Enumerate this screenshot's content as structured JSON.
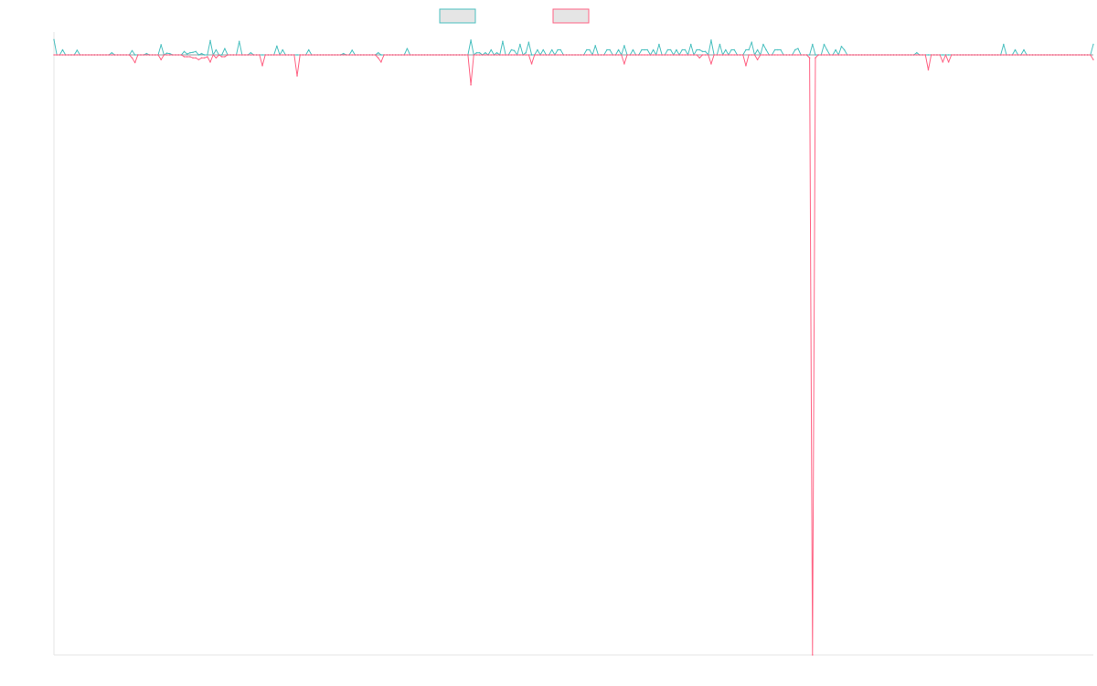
{
  "chart_data": {
    "type": "line",
    "title": "",
    "xlabel": "",
    "ylabel": "",
    "grid": false,
    "legend_placement": "top-center",
    "ylim": [
      -100,
      5
    ],
    "y_baseline": 0,
    "x": [
      0,
      1,
      2,
      3,
      4,
      5,
      6,
      7,
      8,
      9,
      10,
      11,
      12,
      13,
      14,
      15,
      16,
      17,
      18,
      19,
      20,
      21,
      22,
      23,
      24,
      25,
      26,
      27,
      28,
      29,
      30,
      31,
      32,
      33,
      34,
      35,
      36,
      37,
      38,
      39,
      40,
      41,
      42,
      43,
      44,
      45,
      46,
      47,
      48,
      49,
      50,
      51,
      52,
      53,
      54,
      55,
      56,
      57,
      58,
      59,
      60,
      61,
      62,
      63,
      64,
      65,
      66,
      67,
      68,
      69,
      70,
      71,
      72,
      73,
      74,
      75,
      76,
      77,
      78,
      79,
      80,
      81,
      82,
      83,
      84,
      85,
      86,
      87,
      88,
      89,
      90,
      91,
      92,
      93,
      94,
      95,
      96,
      97,
      98,
      99,
      100,
      101,
      102,
      103,
      104,
      105,
      106,
      107,
      108,
      109,
      110,
      111,
      112,
      113,
      114,
      115,
      116,
      117,
      118,
      119,
      120,
      121,
      122,
      123,
      124,
      125,
      126,
      127,
      128,
      129,
      130,
      131,
      132,
      133,
      134,
      135,
      136,
      137,
      138,
      139,
      140,
      141,
      142,
      143,
      144,
      145,
      146,
      147,
      148,
      149,
      150,
      151,
      152,
      153,
      154,
      155,
      156,
      157,
      158,
      159,
      160,
      161,
      162,
      163,
      164,
      165,
      166,
      167,
      168,
      169,
      170,
      171,
      172,
      173,
      174,
      175,
      176,
      177,
      178,
      179,
      180,
      181,
      182,
      183,
      184,
      185,
      186,
      187,
      188,
      189,
      190,
      191,
      192,
      193,
      194,
      195,
      196,
      197,
      198,
      199,
      200,
      201,
      202,
      203,
      204,
      205,
      206,
      207,
      208,
      209,
      210,
      211,
      212,
      213,
      214,
      215,
      216,
      217,
      218,
      219,
      220,
      221,
      222,
      223,
      224,
      225,
      226,
      227,
      228,
      229,
      230,
      231,
      232,
      233,
      234,
      235,
      236,
      237,
      238,
      239,
      240,
      241,
      242,
      243,
      244,
      245,
      246,
      247,
      248,
      249,
      250,
      251,
      252,
      253,
      254,
      255,
      256,
      257,
      258,
      259,
      260,
      261,
      262,
      263,
      264,
      265,
      266,
      267,
      268,
      269,
      270,
      271,
      272,
      273,
      274,
      275,
      276,
      277,
      278,
      279,
      280,
      281,
      282,
      283,
      284,
      285,
      286,
      287,
      288,
      289,
      290,
      291,
      292,
      293,
      294,
      295,
      296,
      297,
      298,
      299,
      300,
      301,
      302,
      303,
      304,
      305,
      306,
      307,
      308,
      309,
      310,
      311,
      312,
      313,
      314,
      315,
      316,
      317,
      318,
      319,
      320,
      321,
      322,
      323,
      324,
      325,
      326,
      327,
      328,
      329,
      330,
      331,
      332,
      333,
      334,
      335,
      336,
      337,
      338,
      339,
      340,
      341,
      342,
      343,
      344,
      345,
      346,
      347,
      348,
      349,
      350,
      351,
      352,
      353,
      354,
      355,
      356,
      357,
      358,
      359
    ],
    "series": [
      {
        "name": "",
        "color": "#4bc0c0",
        "values": [
          3.6,
          0,
          0,
          1.2,
          0,
          0,
          0,
          0,
          1.1,
          0,
          0,
          0,
          0,
          0,
          0,
          0,
          0,
          0,
          0,
          0,
          0.5,
          0,
          0,
          0,
          0,
          0,
          0,
          1.0,
          0,
          0,
          0,
          0,
          0.3,
          0,
          0,
          0,
          0,
          2.4,
          0,
          0.4,
          0.3,
          0,
          0,
          0,
          0,
          0.8,
          0.2,
          0.5,
          0.6,
          0.8,
          0,
          0.3,
          0,
          0,
          3.4,
          0,
          1.2,
          0,
          0,
          1.5,
          0,
          0,
          0,
          0,
          3.2,
          0,
          0,
          0,
          0.5,
          0,
          0,
          0,
          0,
          0,
          0,
          0,
          0,
          2.1,
          0,
          1.2,
          0,
          0,
          0,
          0,
          0,
          0,
          0,
          0,
          1.2,
          0,
          0,
          0,
          0,
          0,
          0,
          0,
          0,
          0,
          0,
          0,
          0.3,
          0,
          0,
          1.1,
          0,
          0,
          0,
          0,
          0,
          0,
          0,
          0,
          0.5,
          0,
          0,
          0,
          0,
          0,
          0,
          0,
          0,
          0,
          1.5,
          0,
          0,
          0,
          0,
          0,
          0,
          0,
          0,
          0,
          0,
          0,
          0,
          0,
          0,
          0,
          0,
          0,
          0,
          0,
          0,
          0,
          3.5,
          0,
          0.5,
          0.5,
          0,
          0.5,
          0,
          1.2,
          0,
          0.5,
          0,
          3.2,
          0,
          0,
          1.2,
          1.0,
          0,
          2.5,
          0,
          0.5,
          3.0,
          0,
          0,
          1.2,
          0,
          1.2,
          0,
          0,
          1.2,
          0,
          1.2,
          1.2,
          0,
          0,
          0,
          0,
          0,
          0,
          0,
          0,
          1.2,
          1.2,
          0,
          2.2,
          0,
          0,
          0,
          1.2,
          1.2,
          0,
          0,
          1.2,
          0,
          2.2,
          0,
          0,
          1.2,
          0,
          0,
          1.2,
          1.2,
          1.2,
          0,
          1.2,
          0,
          2.5,
          0,
          0,
          1.2,
          1.2,
          0,
          1.2,
          0,
          1.2,
          1.2,
          0,
          2.5,
          0,
          1.2,
          1.2,
          0.8,
          0.8,
          0,
          3.5,
          0,
          0,
          2.5,
          0,
          1.2,
          0,
          1.2,
          1.2,
          0,
          0,
          0,
          1.2,
          1.2,
          3.0,
          0,
          1.2,
          0,
          2.5,
          1.2,
          0,
          0,
          1.2,
          1.2,
          1.2,
          0,
          0,
          0,
          0,
          1.2,
          1.5,
          0,
          0,
          0,
          0,
          2.5,
          0,
          0,
          0,
          2.5,
          1.2,
          0,
          0,
          1.2,
          0,
          2.0,
          1.2,
          0,
          0,
          0,
          0,
          0,
          0,
          0,
          0,
          0,
          0,
          0,
          0,
          0,
          0,
          0,
          0,
          0,
          0,
          0,
          0,
          0,
          0,
          0,
          0,
          0.5,
          0,
          0,
          0,
          0,
          0,
          0,
          0,
          0,
          0,
          0,
          0,
          0,
          0,
          0,
          0,
          0,
          0,
          0,
          0,
          0,
          0,
          0,
          0,
          0,
          0,
          0,
          0,
          0,
          0,
          2.5,
          0,
          0,
          0,
          1.2,
          0,
          0,
          1.2,
          0,
          0,
          0,
          0,
          0,
          0,
          0,
          0,
          0,
          0,
          0,
          0,
          0,
          0,
          0,
          0,
          0,
          0,
          0,
          0,
          0,
          0,
          0,
          2.5
        ]
      },
      {
        "name": "",
        "color": "#ff6384",
        "values": [
          0,
          0,
          0,
          0,
          0,
          0,
          0,
          0,
          0,
          0,
          0,
          0,
          0,
          0,
          0,
          0,
          0,
          0,
          0,
          0,
          0,
          0,
          0,
          0,
          0,
          0,
          0,
          -0.5,
          -1.3,
          0,
          0,
          0,
          0,
          0,
          0,
          0,
          0,
          -0.8,
          0,
          0,
          0,
          0,
          0,
          0,
          0,
          -0.3,
          -0.3,
          -0.3,
          -0.5,
          -0.5,
          -0.8,
          -0.5,
          -0.5,
          -0.3,
          -1.2,
          0,
          -0.5,
          0,
          -0.3,
          -0.3,
          0,
          0,
          0,
          0,
          0,
          0,
          0,
          0,
          0,
          0,
          0,
          0,
          -1.8,
          0,
          0,
          0,
          0,
          0,
          0,
          0,
          0,
          0,
          0,
          0,
          -3.5,
          0,
          0,
          0,
          0,
          0,
          0,
          0,
          0,
          0,
          0,
          0,
          0,
          0,
          0,
          0,
          0,
          0,
          0,
          0,
          0,
          0,
          0,
          0,
          0,
          0,
          0,
          0,
          -0.5,
          -1.2,
          0,
          0,
          0,
          0,
          0,
          0,
          0,
          0,
          0,
          0,
          0,
          0,
          0,
          0,
          0,
          0,
          0,
          0,
          0,
          0,
          0,
          0,
          0,
          0,
          0,
          0,
          0,
          0,
          0,
          0,
          -5.0,
          0,
          0,
          0,
          0,
          0,
          0,
          0,
          0,
          0,
          0,
          0,
          0,
          0,
          0,
          0,
          0,
          0,
          0,
          0,
          0,
          -1.5,
          0,
          0,
          0,
          0,
          0,
          0,
          0,
          0,
          0,
          0,
          0,
          0,
          0,
          0,
          0,
          0,
          0,
          0,
          0,
          0,
          0,
          0,
          0,
          0,
          0,
          0,
          0,
          0,
          0,
          0,
          0,
          -1.5,
          0,
          0,
          0,
          0,
          0,
          0,
          0,
          0,
          0,
          0,
          0,
          0,
          0,
          0,
          0,
          0,
          0,
          0,
          0,
          0,
          0,
          0,
          0,
          0,
          0,
          -0.5,
          0,
          0,
          0,
          -1.5,
          0,
          0,
          0,
          0,
          0,
          0,
          0,
          0,
          0,
          0,
          0,
          -1.8,
          0,
          0,
          0,
          -0.8,
          0,
          0,
          0,
          0,
          0,
          0,
          0,
          0,
          0,
          0,
          0,
          0,
          0,
          0,
          0,
          0,
          0,
          -0.5,
          -100,
          -0.5,
          0,
          0,
          0,
          0,
          0,
          0,
          0,
          0,
          0,
          0,
          0,
          0,
          0,
          0,
          0,
          0,
          0,
          0,
          0,
          0,
          0,
          0,
          0,
          0,
          0,
          0,
          0,
          0,
          0,
          0,
          0,
          0,
          0,
          0,
          0,
          0,
          0,
          0,
          -2.5,
          0,
          0,
          0,
          0,
          -1.2,
          0,
          -1.2,
          0,
          0,
          0,
          0,
          0,
          0,
          0,
          0,
          0,
          0,
          0,
          0,
          0,
          0,
          0,
          0,
          0,
          0,
          0,
          0,
          0,
          0,
          0,
          0,
          0,
          0,
          0,
          0,
          0,
          0,
          0,
          0,
          0,
          0,
          0,
          0,
          0,
          0,
          0,
          0,
          0,
          0,
          0,
          0,
          0,
          0,
          0,
          0,
          0,
          -0.8
        ]
      }
    ]
  }
}
